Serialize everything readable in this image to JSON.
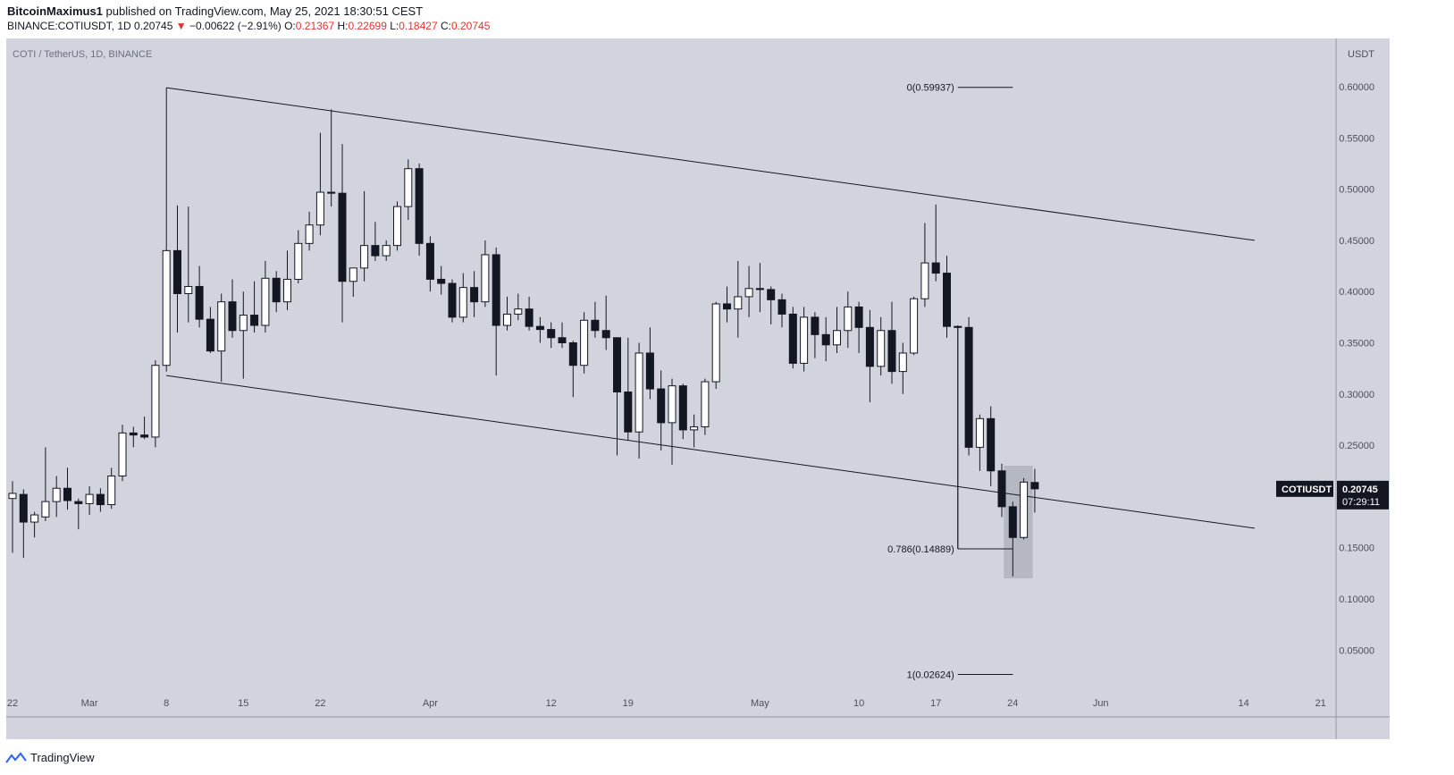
{
  "header": {
    "author": "BitcoinMaximus1",
    "published_text": " published on TradingView.com, May 25, 2021 18:30:51 CEST",
    "symbol_line": "BINANCE:COTIUSDT, 1D",
    "last": "0.20745",
    "change_arrow": "▼",
    "change": "−0.00622 (−2.91%)",
    "o_label": "O:",
    "o_value": "0.21367",
    "h_label": "H:",
    "h_value": "0.22699",
    "l_label": "L:",
    "l_value": "0.18427",
    "c_label": "C:",
    "c_value": "0.20745"
  },
  "footer": {
    "brand": "TradingView"
  },
  "colors": {
    "background": "#d1d4dc",
    "up_candle": "#ffffff",
    "down_candle": "#131722",
    "line": "#131722",
    "highlight_box": "#b2b5be"
  },
  "chart_data": {
    "type": "candlestick",
    "title": "COTI / TetherUS, 1D, BINANCE",
    "y_axis_unit": "USDT",
    "ylim": [
      0.0,
      0.65
    ],
    "y_ticks": [
      "0.60000",
      "0.55000",
      "0.50000",
      "0.45000",
      "0.40000",
      "0.35000",
      "0.30000",
      "0.25000",
      "0.20000",
      "0.15000",
      "0.10000",
      "0.05000"
    ],
    "y_tick_values": [
      0.6,
      0.55,
      0.5,
      0.45,
      0.4,
      0.35,
      0.3,
      0.25,
      0.2,
      0.15,
      0.1,
      0.05
    ],
    "x_range": [
      "2021-02-22",
      "2021-06-23"
    ],
    "x_ticks": [
      {
        "date": "2021-02-22",
        "label": "22"
      },
      {
        "date": "2021-03-01",
        "label": "Mar"
      },
      {
        "date": "2021-03-08",
        "label": "8"
      },
      {
        "date": "2021-03-15",
        "label": "15"
      },
      {
        "date": "2021-03-22",
        "label": "22"
      },
      {
        "date": "2021-04-01",
        "label": "Apr"
      },
      {
        "date": "2021-04-12",
        "label": "12"
      },
      {
        "date": "2021-04-19",
        "label": "19"
      },
      {
        "date": "2021-05-01",
        "label": "May"
      },
      {
        "date": "2021-05-10",
        "label": "10"
      },
      {
        "date": "2021-05-17",
        "label": "17"
      },
      {
        "date": "2021-05-24",
        "label": "24"
      },
      {
        "date": "2021-06-01",
        "label": "Jun"
      },
      {
        "date": "2021-06-14",
        "label": "14"
      },
      {
        "date": "2021-06-21",
        "label": "21"
      }
    ],
    "candles": [
      {
        "date": "2021-02-22",
        "o": 0.198,
        "h": 0.215,
        "l": 0.145,
        "c": 0.203
      },
      {
        "date": "2021-02-23",
        "o": 0.202,
        "h": 0.207,
        "l": 0.14,
        "c": 0.175
      },
      {
        "date": "2021-02-24",
        "o": 0.175,
        "h": 0.185,
        "l": 0.16,
        "c": 0.182
      },
      {
        "date": "2021-02-25",
        "o": 0.18,
        "h": 0.248,
        "l": 0.176,
        "c": 0.195
      },
      {
        "date": "2021-02-26",
        "o": 0.195,
        "h": 0.22,
        "l": 0.18,
        "c": 0.208
      },
      {
        "date": "2021-02-27",
        "o": 0.208,
        "h": 0.228,
        "l": 0.187,
        "c": 0.196
      },
      {
        "date": "2021-02-28",
        "o": 0.195,
        "h": 0.198,
        "l": 0.168,
        "c": 0.193
      },
      {
        "date": "2021-03-01",
        "o": 0.193,
        "h": 0.21,
        "l": 0.182,
        "c": 0.202
      },
      {
        "date": "2021-03-02",
        "o": 0.202,
        "h": 0.208,
        "l": 0.185,
        "c": 0.192
      },
      {
        "date": "2021-03-03",
        "o": 0.192,
        "h": 0.228,
        "l": 0.188,
        "c": 0.22
      },
      {
        "date": "2021-03-04",
        "o": 0.22,
        "h": 0.27,
        "l": 0.215,
        "c": 0.262
      },
      {
        "date": "2021-03-05",
        "o": 0.262,
        "h": 0.268,
        "l": 0.248,
        "c": 0.26
      },
      {
        "date": "2021-03-06",
        "o": 0.26,
        "h": 0.278,
        "l": 0.256,
        "c": 0.258
      },
      {
        "date": "2021-03-07",
        "o": 0.258,
        "h": 0.333,
        "l": 0.248,
        "c": 0.328
      },
      {
        "date": "2021-03-08",
        "o": 0.328,
        "h": 0.599,
        "l": 0.322,
        "c": 0.44
      },
      {
        "date": "2021-03-09",
        "o": 0.44,
        "h": 0.484,
        "l": 0.36,
        "c": 0.398
      },
      {
        "date": "2021-03-10",
        "o": 0.398,
        "h": 0.483,
        "l": 0.37,
        "c": 0.405
      },
      {
        "date": "2021-03-11",
        "o": 0.405,
        "h": 0.425,
        "l": 0.365,
        "c": 0.373
      },
      {
        "date": "2021-03-12",
        "o": 0.373,
        "h": 0.385,
        "l": 0.34,
        "c": 0.342
      },
      {
        "date": "2021-03-13",
        "o": 0.342,
        "h": 0.398,
        "l": 0.312,
        "c": 0.39
      },
      {
        "date": "2021-03-14",
        "o": 0.39,
        "h": 0.412,
        "l": 0.355,
        "c": 0.362
      },
      {
        "date": "2021-03-15",
        "o": 0.362,
        "h": 0.4,
        "l": 0.315,
        "c": 0.377
      },
      {
        "date": "2021-03-16",
        "o": 0.377,
        "h": 0.41,
        "l": 0.36,
        "c": 0.367
      },
      {
        "date": "2021-03-17",
        "o": 0.367,
        "h": 0.43,
        "l": 0.36,
        "c": 0.413
      },
      {
        "date": "2021-03-18",
        "o": 0.413,
        "h": 0.42,
        "l": 0.38,
        "c": 0.39
      },
      {
        "date": "2021-03-19",
        "o": 0.39,
        "h": 0.44,
        "l": 0.382,
        "c": 0.412
      },
      {
        "date": "2021-03-20",
        "o": 0.412,
        "h": 0.46,
        "l": 0.408,
        "c": 0.447
      },
      {
        "date": "2021-03-21",
        "o": 0.447,
        "h": 0.478,
        "l": 0.44,
        "c": 0.465
      },
      {
        "date": "2021-03-22",
        "o": 0.465,
        "h": 0.555,
        "l": 0.455,
        "c": 0.497
      },
      {
        "date": "2021-03-23",
        "o": 0.497,
        "h": 0.578,
        "l": 0.483,
        "c": 0.496
      },
      {
        "date": "2021-03-24",
        "o": 0.496,
        "h": 0.544,
        "l": 0.37,
        "c": 0.41
      },
      {
        "date": "2021-03-25",
        "o": 0.41,
        "h": 0.42,
        "l": 0.395,
        "c": 0.423
      },
      {
        "date": "2021-03-26",
        "o": 0.423,
        "h": 0.498,
        "l": 0.41,
        "c": 0.445
      },
      {
        "date": "2021-03-27",
        "o": 0.445,
        "h": 0.468,
        "l": 0.43,
        "c": 0.435
      },
      {
        "date": "2021-03-28",
        "o": 0.435,
        "h": 0.45,
        "l": 0.43,
        "c": 0.445
      },
      {
        "date": "2021-03-29",
        "o": 0.445,
        "h": 0.488,
        "l": 0.44,
        "c": 0.483
      },
      {
        "date": "2021-03-30",
        "o": 0.483,
        "h": 0.529,
        "l": 0.47,
        "c": 0.52
      },
      {
        "date": "2021-03-31",
        "o": 0.52,
        "h": 0.525,
        "l": 0.435,
        "c": 0.447
      },
      {
        "date": "2021-04-01",
        "o": 0.447,
        "h": 0.454,
        "l": 0.4,
        "c": 0.412
      },
      {
        "date": "2021-04-02",
        "o": 0.412,
        "h": 0.425,
        "l": 0.397,
        "c": 0.408
      },
      {
        "date": "2021-04-03",
        "o": 0.408,
        "h": 0.412,
        "l": 0.37,
        "c": 0.375
      },
      {
        "date": "2021-04-04",
        "o": 0.375,
        "h": 0.418,
        "l": 0.37,
        "c": 0.404
      },
      {
        "date": "2021-04-05",
        "o": 0.404,
        "h": 0.42,
        "l": 0.375,
        "c": 0.39
      },
      {
        "date": "2021-04-06",
        "o": 0.39,
        "h": 0.45,
        "l": 0.385,
        "c": 0.436
      },
      {
        "date": "2021-04-07",
        "o": 0.436,
        "h": 0.443,
        "l": 0.318,
        "c": 0.367
      },
      {
        "date": "2021-04-08",
        "o": 0.367,
        "h": 0.395,
        "l": 0.362,
        "c": 0.378
      },
      {
        "date": "2021-04-09",
        "o": 0.378,
        "h": 0.398,
        "l": 0.372,
        "c": 0.383
      },
      {
        "date": "2021-04-10",
        "o": 0.383,
        "h": 0.395,
        "l": 0.362,
        "c": 0.366
      },
      {
        "date": "2021-04-11",
        "o": 0.366,
        "h": 0.375,
        "l": 0.35,
        "c": 0.363
      },
      {
        "date": "2021-04-12",
        "o": 0.363,
        "h": 0.37,
        "l": 0.345,
        "c": 0.355
      },
      {
        "date": "2021-04-13",
        "o": 0.355,
        "h": 0.37,
        "l": 0.345,
        "c": 0.35
      },
      {
        "date": "2021-04-14",
        "o": 0.35,
        "h": 0.352,
        "l": 0.297,
        "c": 0.328
      },
      {
        "date": "2021-04-15",
        "o": 0.328,
        "h": 0.38,
        "l": 0.32,
        "c": 0.372
      },
      {
        "date": "2021-04-16",
        "o": 0.372,
        "h": 0.39,
        "l": 0.355,
        "c": 0.362
      },
      {
        "date": "2021-04-17",
        "o": 0.362,
        "h": 0.396,
        "l": 0.343,
        "c": 0.355
      },
      {
        "date": "2021-04-18",
        "o": 0.355,
        "h": 0.355,
        "l": 0.24,
        "c": 0.302
      },
      {
        "date": "2021-04-19",
        "o": 0.302,
        "h": 0.355,
        "l": 0.255,
        "c": 0.263
      },
      {
        "date": "2021-04-20",
        "o": 0.263,
        "h": 0.35,
        "l": 0.237,
        "c": 0.34
      },
      {
        "date": "2021-04-21",
        "o": 0.34,
        "h": 0.365,
        "l": 0.295,
        "c": 0.305
      },
      {
        "date": "2021-04-22",
        "o": 0.305,
        "h": 0.323,
        "l": 0.245,
        "c": 0.272
      },
      {
        "date": "2021-04-23",
        "o": 0.272,
        "h": 0.315,
        "l": 0.231,
        "c": 0.308
      },
      {
        "date": "2021-04-24",
        "o": 0.308,
        "h": 0.31,
        "l": 0.256,
        "c": 0.265
      },
      {
        "date": "2021-04-25",
        "o": 0.265,
        "h": 0.28,
        "l": 0.248,
        "c": 0.268
      },
      {
        "date": "2021-04-26",
        "o": 0.268,
        "h": 0.315,
        "l": 0.26,
        "c": 0.312
      },
      {
        "date": "2021-04-27",
        "o": 0.312,
        "h": 0.39,
        "l": 0.305,
        "c": 0.388
      },
      {
        "date": "2021-04-28",
        "o": 0.388,
        "h": 0.405,
        "l": 0.37,
        "c": 0.383
      },
      {
        "date": "2021-04-29",
        "o": 0.383,
        "h": 0.43,
        "l": 0.355,
        "c": 0.395
      },
      {
        "date": "2021-04-30",
        "o": 0.395,
        "h": 0.425,
        "l": 0.375,
        "c": 0.403
      },
      {
        "date": "2021-05-01",
        "o": 0.403,
        "h": 0.428,
        "l": 0.38,
        "c": 0.402
      },
      {
        "date": "2021-05-02",
        "o": 0.402,
        "h": 0.405,
        "l": 0.368,
        "c": 0.392
      },
      {
        "date": "2021-05-03",
        "o": 0.392,
        "h": 0.398,
        "l": 0.365,
        "c": 0.378
      },
      {
        "date": "2021-05-04",
        "o": 0.378,
        "h": 0.385,
        "l": 0.325,
        "c": 0.33
      },
      {
        "date": "2021-05-05",
        "o": 0.33,
        "h": 0.385,
        "l": 0.322,
        "c": 0.375
      },
      {
        "date": "2021-05-06",
        "o": 0.375,
        "h": 0.38,
        "l": 0.335,
        "c": 0.358
      },
      {
        "date": "2021-05-07",
        "o": 0.358,
        "h": 0.375,
        "l": 0.332,
        "c": 0.348
      },
      {
        "date": "2021-05-08",
        "o": 0.348,
        "h": 0.385,
        "l": 0.34,
        "c": 0.362
      },
      {
        "date": "2021-05-09",
        "o": 0.362,
        "h": 0.4,
        "l": 0.345,
        "c": 0.385
      },
      {
        "date": "2021-05-10",
        "o": 0.385,
        "h": 0.39,
        "l": 0.34,
        "c": 0.365
      },
      {
        "date": "2021-05-11",
        "o": 0.365,
        "h": 0.382,
        "l": 0.292,
        "c": 0.327
      },
      {
        "date": "2021-05-12",
        "o": 0.327,
        "h": 0.375,
        "l": 0.318,
        "c": 0.362
      },
      {
        "date": "2021-05-13",
        "o": 0.362,
        "h": 0.39,
        "l": 0.31,
        "c": 0.322
      },
      {
        "date": "2021-05-14",
        "o": 0.322,
        "h": 0.35,
        "l": 0.3,
        "c": 0.34
      },
      {
        "date": "2021-05-15",
        "o": 0.34,
        "h": 0.395,
        "l": 0.338,
        "c": 0.393
      },
      {
        "date": "2021-05-16",
        "o": 0.393,
        "h": 0.467,
        "l": 0.385,
        "c": 0.428
      },
      {
        "date": "2021-05-17",
        "o": 0.428,
        "h": 0.485,
        "l": 0.41,
        "c": 0.418
      },
      {
        "date": "2021-05-18",
        "o": 0.418,
        "h": 0.435,
        "l": 0.355,
        "c": 0.366
      },
      {
        "date": "2021-05-19",
        "o": 0.366,
        "h": 0.367,
        "l": 0.149,
        "c": 0.365
      },
      {
        "date": "2021-05-20",
        "o": 0.365,
        "h": 0.375,
        "l": 0.24,
        "c": 0.248
      },
      {
        "date": "2021-05-21",
        "o": 0.248,
        "h": 0.28,
        "l": 0.225,
        "c": 0.276
      },
      {
        "date": "2021-05-22",
        "o": 0.276,
        "h": 0.288,
        "l": 0.21,
        "c": 0.225
      },
      {
        "date": "2021-05-23",
        "o": 0.225,
        "h": 0.232,
        "l": 0.18,
        "c": 0.19
      },
      {
        "date": "2021-05-24",
        "o": 0.19,
        "h": 0.195,
        "l": 0.122,
        "c": 0.16
      },
      {
        "date": "2021-05-25",
        "o": 0.16,
        "h": 0.218,
        "l": 0.158,
        "c": 0.214
      },
      {
        "date": "2021-05-26",
        "o": 0.21367,
        "h": 0.22699,
        "l": 0.18427,
        "c": 0.20745
      }
    ],
    "channel_upper": {
      "from": {
        "date": "2021-03-08",
        "price": 0.599
      },
      "to": {
        "date": "2021-06-15",
        "price": 0.45
      }
    },
    "channel_lower": {
      "from": {
        "date": "2021-03-08",
        "price": 0.318
      },
      "to": {
        "date": "2021-06-15",
        "price": 0.169
      }
    },
    "fibonacci": [
      {
        "label": "0(0.59937)",
        "price": 0.59937
      },
      {
        "label": "0.786(0.14889)",
        "price": 0.14889
      },
      {
        "label": "1(0.02624)",
        "price": 0.02624
      }
    ],
    "fib_from_date": "2021-05-19",
    "fib_to_date": "2021-05-24",
    "highlight_box": {
      "from_date": "2021-05-24",
      "to_date": "2021-05-25",
      "top": 0.23,
      "bottom": 0.12
    },
    "price_label": {
      "symbol": "COTIUSDT",
      "value": "0.20745",
      "countdown": "07:29:11"
    }
  }
}
